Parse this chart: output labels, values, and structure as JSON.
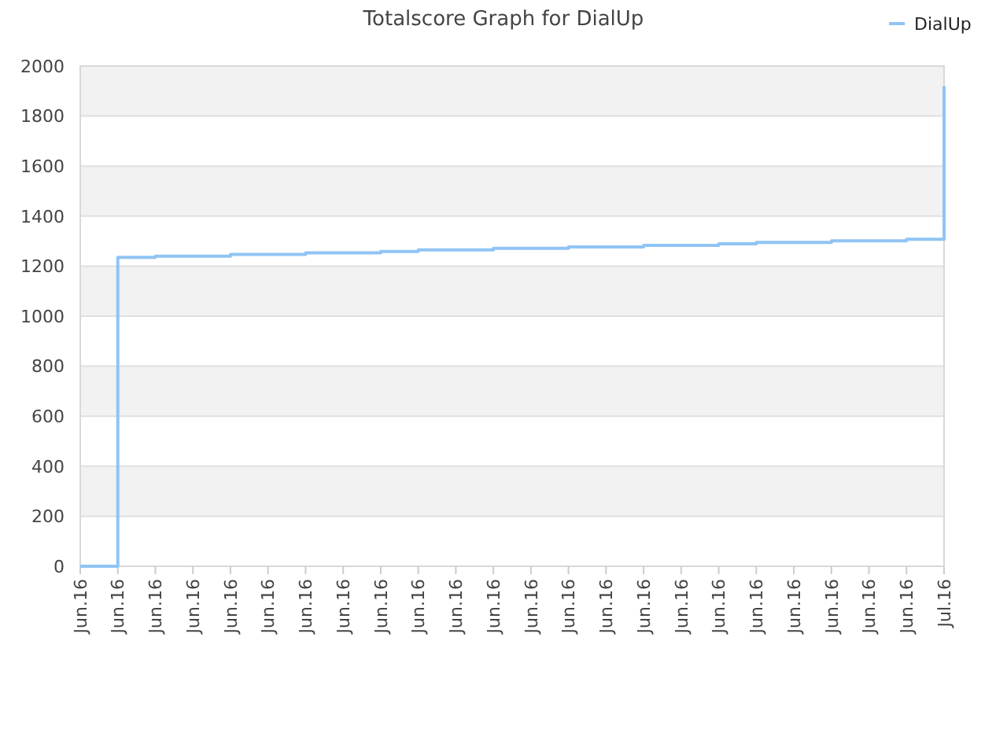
{
  "chart_data": {
    "type": "step",
    "title": "Totalscore Graph for DialUp",
    "categories": [
      "Jun.16",
      "Jun.16",
      "Jun.16",
      "Jun.16",
      "Jun.16",
      "Jun.16",
      "Jun.16",
      "Jun.16",
      "Jun.16",
      "Jun.16",
      "Jun.16",
      "Jun.16",
      "Jun.16",
      "Jun.16",
      "Jun.16",
      "Jun.16",
      "Jun.16",
      "Jun.16",
      "Jun.16",
      "Jun.16",
      "Jun.16",
      "Jun.16",
      "Jun.16",
      "Jul.16"
    ],
    "series": [
      {
        "name": "DialUp",
        "color": "#90c4f4",
        "values": [
          0,
          1235,
          1240,
          1240,
          1247,
          1247,
          1253,
          1253,
          1259,
          1265,
          1265,
          1271,
          1271,
          1277,
          1277,
          1283,
          1283,
          1289,
          1295,
          1295,
          1301,
          1301,
          1307,
          1920
        ]
      }
    ],
    "ylim": [
      0,
      2000
    ],
    "yticks": [
      0,
      200,
      400,
      600,
      800,
      1000,
      1200,
      1400,
      1600,
      1800,
      2000
    ],
    "grid": "y",
    "legend": "top right",
    "bands": [
      {
        "axis": "y",
        "from": 200,
        "to": 400,
        "color": "#f2f2f2"
      },
      {
        "axis": "y",
        "from": 600,
        "to": 800,
        "color": "#f2f2f2"
      },
      {
        "axis": "y",
        "from": 1000,
        "to": 1200,
        "color": "#f2f2f2"
      },
      {
        "axis": "y",
        "from": 1400,
        "to": 1600,
        "color": "#f2f2f2"
      },
      {
        "axis": "y",
        "from": 1800,
        "to": 2000,
        "color": "#f2f2f2"
      }
    ]
  }
}
